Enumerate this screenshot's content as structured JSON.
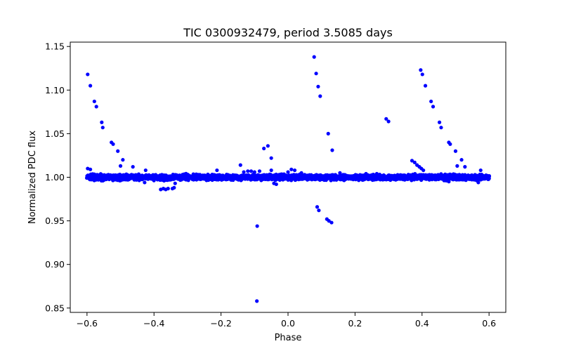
{
  "chart_data": {
    "type": "scatter",
    "title": "TIC 0300932479, period 3.5085 days",
    "xlabel": "Phase",
    "ylabel": "Normalized PDC flux",
    "xlim": [
      -0.65,
      0.65
    ],
    "ylim": [
      0.845,
      1.155
    ],
    "xticks": [
      -0.6,
      -0.4,
      -0.2,
      0.0,
      0.2,
      0.4,
      0.6
    ],
    "xtick_labels": [
      "−0.6",
      "−0.4",
      "−0.2",
      "0.0",
      "0.2",
      "0.4",
      "0.6"
    ],
    "yticks": [
      0.85,
      0.9,
      0.95,
      1.0,
      1.05,
      1.1,
      1.15
    ],
    "ytick_labels": [
      "0.85",
      "0.90",
      "0.95",
      "1.00",
      "1.05",
      "1.10",
      "1.15"
    ],
    "grid": false,
    "marker_color": "#0000ff",
    "baseline": {
      "description": "dense band of points near normalized flux 1.000 spanning phase -0.6 to 0.6",
      "x_range": [
        -0.6,
        0.6
      ],
      "center": 1.0,
      "scatter": 0.003
    },
    "points": [
      {
        "x": -0.598,
        "y": 1.118
      },
      {
        "x": -0.59,
        "y": 1.105
      },
      {
        "x": -0.578,
        "y": 1.087
      },
      {
        "x": -0.572,
        "y": 1.081
      },
      {
        "x": -0.556,
        "y": 1.063
      },
      {
        "x": -0.553,
        "y": 1.057
      },
      {
        "x": -0.527,
        "y": 1.04
      },
      {
        "x": -0.522,
        "y": 1.038
      },
      {
        "x": -0.508,
        "y": 1.03
      },
      {
        "x": -0.493,
        "y": 1.02
      },
      {
        "x": -0.5,
        "y": 1.013
      },
      {
        "x": -0.463,
        "y": 1.012
      },
      {
        "x": -0.425,
        "y": 1.008
      },
      {
        "x": -0.598,
        "y": 1.01
      },
      {
        "x": -0.59,
        "y": 1.009
      },
      {
        "x": -0.38,
        "y": 0.986
      },
      {
        "x": -0.372,
        "y": 0.987
      },
      {
        "x": -0.365,
        "y": 0.986
      },
      {
        "x": -0.358,
        "y": 0.987
      },
      {
        "x": -0.345,
        "y": 0.987
      },
      {
        "x": -0.34,
        "y": 0.988
      },
      {
        "x": -0.337,
        "y": 0.993
      },
      {
        "x": -0.428,
        "y": 0.994
      },
      {
        "x": -0.37,
        "y": 0.996
      },
      {
        "x": -0.212,
        "y": 1.008
      },
      {
        "x": -0.142,
        "y": 1.014
      },
      {
        "x": -0.132,
        "y": 1.006
      },
      {
        "x": -0.12,
        "y": 1.007
      },
      {
        "x": -0.11,
        "y": 1.007
      },
      {
        "x": -0.1,
        "y": 1.006
      },
      {
        "x": -0.085,
        "y": 1.007
      },
      {
        "x": -0.072,
        "y": 1.033
      },
      {
        "x": -0.06,
        "y": 1.036
      },
      {
        "x": -0.05,
        "y": 1.008
      },
      {
        "x": -0.042,
        "y": 0.993
      },
      {
        "x": -0.035,
        "y": 0.992
      },
      {
        "x": -0.05,
        "y": 1.022
      },
      {
        "x": -0.092,
        "y": 0.944
      },
      {
        "x": -0.093,
        "y": 0.858
      },
      {
        "x": 0.01,
        "y": 1.009
      },
      {
        "x": 0.02,
        "y": 1.008
      },
      {
        "x": 0.04,
        "y": 1.005
      },
      {
        "x": 0.0,
        "y": 1.006
      },
      {
        "x": 0.078,
        "y": 1.138
      },
      {
        "x": 0.084,
        "y": 1.119
      },
      {
        "x": 0.09,
        "y": 1.104
      },
      {
        "x": 0.096,
        "y": 1.093
      },
      {
        "x": 0.12,
        "y": 1.05
      },
      {
        "x": 0.132,
        "y": 1.031
      },
      {
        "x": 0.087,
        "y": 0.966
      },
      {
        "x": 0.092,
        "y": 0.962
      },
      {
        "x": 0.116,
        "y": 0.952
      },
      {
        "x": 0.122,
        "y": 0.95
      },
      {
        "x": 0.13,
        "y": 0.948
      },
      {
        "x": 0.155,
        "y": 1.005
      },
      {
        "x": 0.265,
        "y": 1.004
      },
      {
        "x": 0.293,
        "y": 1.067
      },
      {
        "x": 0.3,
        "y": 1.064
      },
      {
        "x": 0.37,
        "y": 1.019
      },
      {
        "x": 0.378,
        "y": 1.017
      },
      {
        "x": 0.385,
        "y": 1.014
      },
      {
        "x": 0.392,
        "y": 1.012
      },
      {
        "x": 0.398,
        "y": 1.01
      },
      {
        "x": 0.404,
        "y": 1.008
      },
      {
        "x": 0.396,
        "y": 1.123
      },
      {
        "x": 0.401,
        "y": 1.118
      },
      {
        "x": 0.41,
        "y": 1.105
      },
      {
        "x": 0.427,
        "y": 1.087
      },
      {
        "x": 0.433,
        "y": 1.081
      },
      {
        "x": 0.452,
        "y": 1.063
      },
      {
        "x": 0.457,
        "y": 1.057
      },
      {
        "x": 0.48,
        "y": 1.04
      },
      {
        "x": 0.484,
        "y": 1.038
      },
      {
        "x": 0.5,
        "y": 1.03
      },
      {
        "x": 0.518,
        "y": 1.02
      },
      {
        "x": 0.505,
        "y": 1.013
      },
      {
        "x": 0.528,
        "y": 1.012
      },
      {
        "x": 0.575,
        "y": 1.008
      },
      {
        "x": 0.48,
        "y": 0.995
      },
      {
        "x": 0.568,
        "y": 0.994
      },
      {
        "x": 0.245,
        "y": 0.998
      }
    ]
  }
}
